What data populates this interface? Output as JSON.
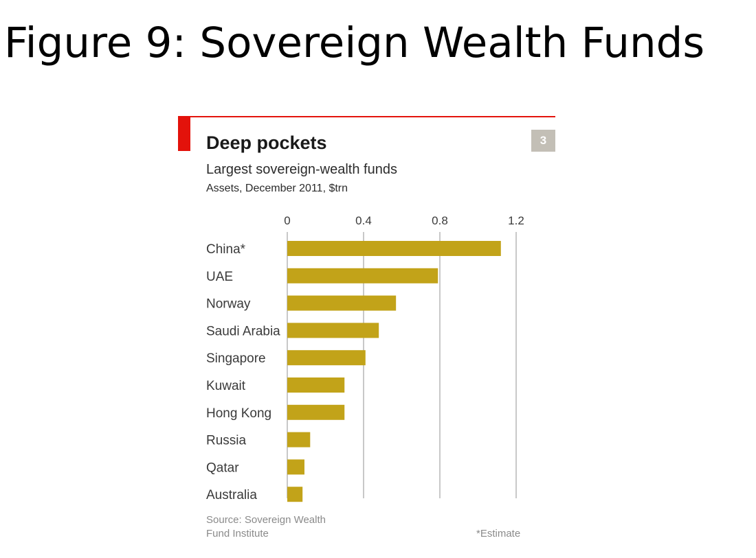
{
  "slide": {
    "title": "Figure 9: Sovereign Wealth Funds"
  },
  "badge": {
    "number": "3"
  },
  "colors": {
    "accent_red": "#e3120b",
    "bar": "#c2a319",
    "grid": "#b5b5b5",
    "badge_bg": "#c3bfb6",
    "label_text": "#3a3a3a",
    "note_text": "#8a8a8a"
  },
  "chart_data": {
    "type": "bar",
    "orientation": "horizontal",
    "title": "Deep pockets",
    "subtitle": "Largest sovereign-wealth funds",
    "units": "Assets, December 2011, $trn",
    "categories": [
      "China*",
      "UAE",
      "Norway",
      "Saudi Arabia",
      "Singapore",
      "Kuwait",
      "Hong Kong",
      "Russia",
      "Qatar",
      "Australia"
    ],
    "values": [
      1.12,
      0.79,
      0.57,
      0.48,
      0.41,
      0.3,
      0.3,
      0.12,
      0.09,
      0.08
    ],
    "xlim": [
      0,
      1.2
    ],
    "xticks": [
      0,
      0.4,
      0.8,
      1.2
    ],
    "xtick_labels": [
      "0",
      "0.4",
      "0.8",
      "1.2"
    ],
    "xaxis_position": "top",
    "grid": true,
    "legend": "none",
    "source": "Source: Sovereign Wealth Fund Institute",
    "note": "*Estimate"
  }
}
